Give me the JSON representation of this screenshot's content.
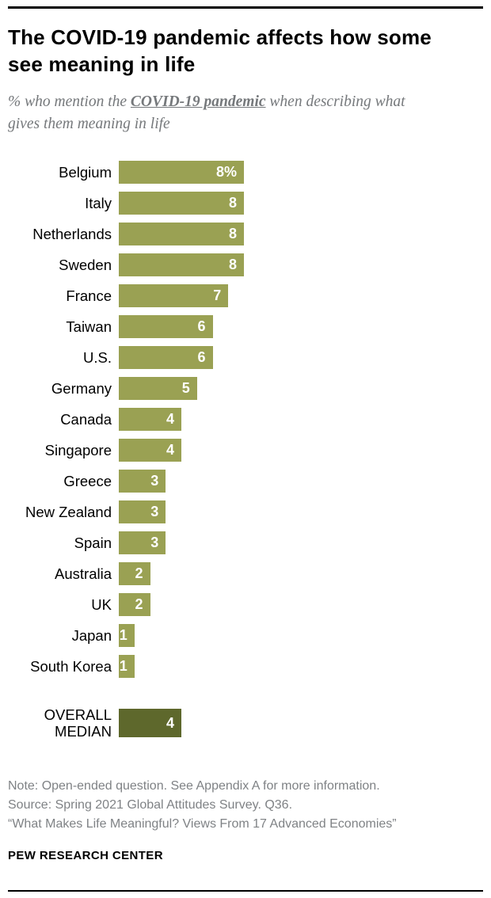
{
  "header": {
    "title": "The COVID-19 pandemic affects how some see meaning in life",
    "subtitle_prefix": "% who mention the ",
    "subtitle_emphasis": "COVID-19 pandemic",
    "subtitle_suffix": " when describing what gives them meaning in life"
  },
  "chart_data": {
    "type": "bar",
    "orientation": "horizontal",
    "categories": [
      "Belgium",
      "Italy",
      "Netherlands",
      "Sweden",
      "France",
      "Taiwan",
      "U.S.",
      "Germany",
      "Canada",
      "Singapore",
      "Greece",
      "New Zealand",
      "Spain",
      "Australia",
      "UK",
      "Japan",
      "South Korea"
    ],
    "values": [
      8,
      8,
      8,
      8,
      7,
      6,
      6,
      5,
      4,
      4,
      3,
      3,
      3,
      2,
      2,
      1,
      1
    ],
    "value_labels": [
      "8%",
      "8",
      "8",
      "8",
      "7",
      "6",
      "6",
      "5",
      "4",
      "4",
      "3",
      "3",
      "3",
      "2",
      "2",
      "1",
      "1"
    ],
    "median": {
      "label_lines": [
        "OVERALL",
        "MEDIAN"
      ],
      "value": 4,
      "value_label": "4"
    },
    "xlim": [
      0,
      8
    ],
    "bar_color": "#9aa153",
    "median_color": "#5e682c",
    "grid": false,
    "legend": false
  },
  "footer": {
    "note": "Note: Open-ended question. See Appendix A for more information.",
    "source": "Source: Spring 2021 Global Attitudes Survey. Q36.",
    "report": "“What Makes Life Meaningful? Views From 17 Advanced Economies”",
    "brand": "PEW RESEARCH CENTER"
  }
}
